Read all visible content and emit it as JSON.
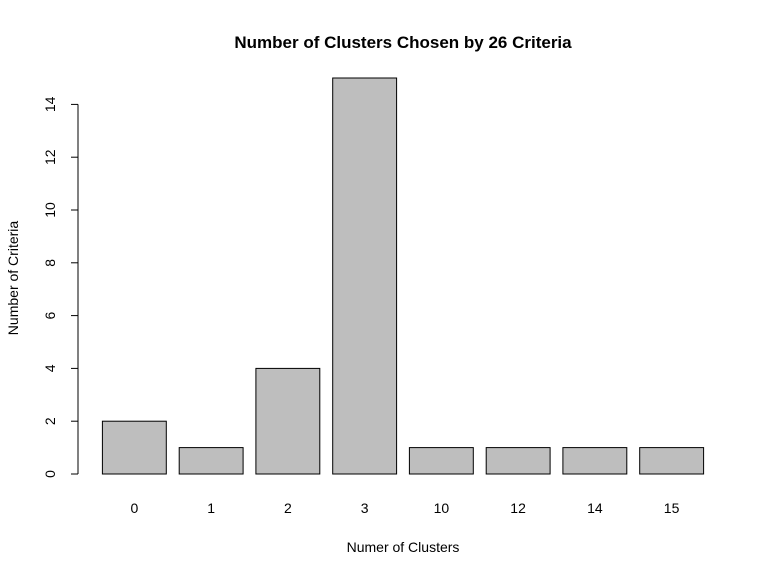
{
  "chart_data": {
    "type": "bar",
    "title": "Number of Clusters Chosen by 26 Criteria",
    "xlabel": "Numer of Clusters",
    "ylabel": "Number of Criteria",
    "categories": [
      "0",
      "1",
      "2",
      "3",
      "10",
      "12",
      "14",
      "15"
    ],
    "values": [
      2,
      1,
      4,
      15,
      1,
      1,
      1,
      1
    ],
    "ylim": [
      0,
      15
    ],
    "yticks": [
      0,
      2,
      4,
      6,
      8,
      10,
      12,
      14
    ],
    "grid": false,
    "bar_color": "#bebebe"
  }
}
